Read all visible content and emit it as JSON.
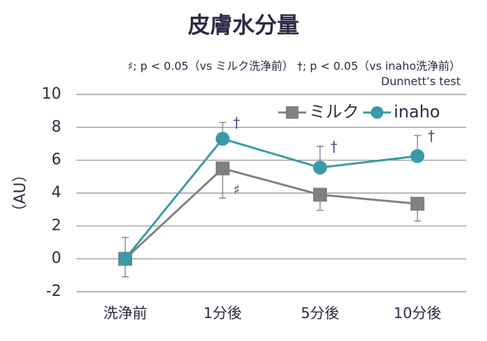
{
  "chart_data": {
    "type": "line",
    "title": "皮膚水分量",
    "subtitle": "♯; p < 0.05（vs ミルク洗浄前） †; p < 0.05（vs inaho洗浄前）",
    "note": "Dunnett’s test",
    "ylabel": "（AU）",
    "categories": [
      "洗浄前",
      "1分後",
      "5分後",
      "10分後"
    ],
    "series": [
      {
        "name": "ミルク",
        "color": "#808080",
        "marker": "square",
        "values": [
          0,
          5.5,
          3.9,
          3.35
        ],
        "errors": [
          1.1,
          1.8,
          0.95,
          1.05
        ],
        "error_direction": "down",
        "markers": [
          null,
          "♯",
          null,
          null
        ]
      },
      {
        "name": "inaho",
        "color": "#3a9aa5",
        "marker": "circle",
        "values": [
          0,
          7.3,
          5.55,
          6.25
        ],
        "errors": [
          1.3,
          1.0,
          1.3,
          1.25
        ],
        "error_direction": "up",
        "markers": [
          null,
          "†",
          "†",
          "†"
        ]
      }
    ],
    "ylim": [
      -2,
      10
    ],
    "yticks": [
      -2,
      0,
      2,
      4,
      6,
      8,
      10
    ],
    "grid": true,
    "legend": "upper right"
  }
}
